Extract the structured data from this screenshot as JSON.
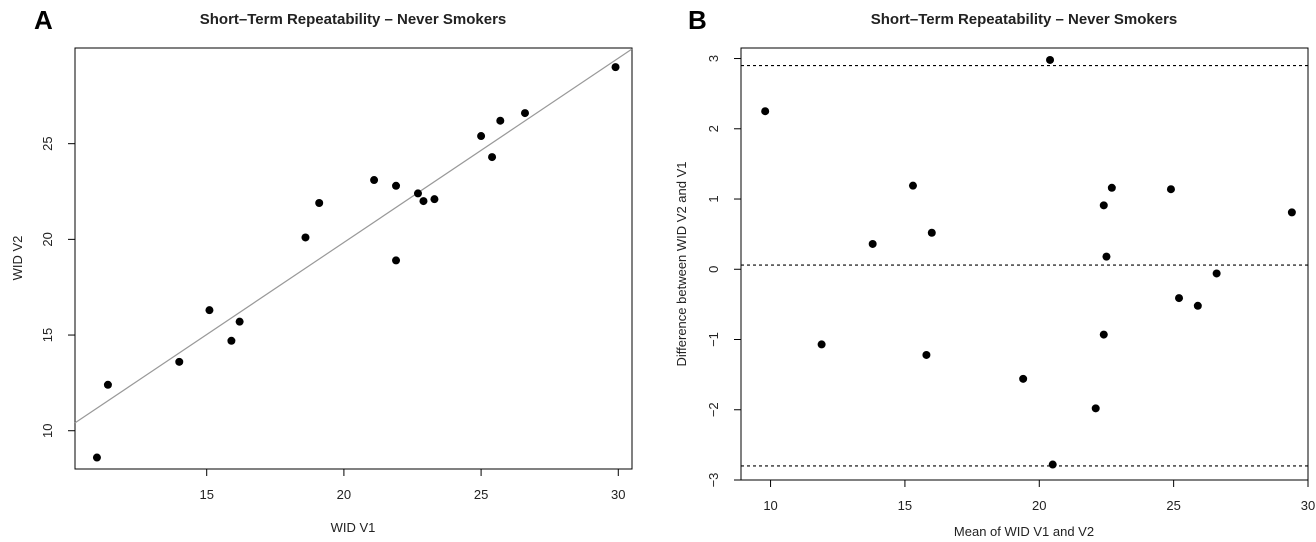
{
  "chart_data": [
    {
      "panel": "A",
      "type": "scatter",
      "title": "Short–Term Repeatability – Never Smokers",
      "xlabel": "WID V1",
      "ylabel": "WID V2",
      "xlim": [
        10.2,
        30.5
      ],
      "ylim": [
        8.0,
        30.0
      ],
      "xticks": [
        15,
        20,
        25,
        30
      ],
      "yticks": [
        10,
        15,
        20,
        25
      ],
      "reference_line": {
        "slope": 0.9625,
        "intercept": 0.59,
        "color": "#999999"
      },
      "points": [
        {
          "x": 11.0,
          "y": 8.6
        },
        {
          "x": 11.4,
          "y": 12.4
        },
        {
          "x": 14.0,
          "y": 13.6
        },
        {
          "x": 15.1,
          "y": 16.3
        },
        {
          "x": 15.9,
          "y": 14.7
        },
        {
          "x": 16.2,
          "y": 15.7
        },
        {
          "x": 18.6,
          "y": 20.1
        },
        {
          "x": 19.1,
          "y": 21.9
        },
        {
          "x": 21.1,
          "y": 23.1
        },
        {
          "x": 21.9,
          "y": 22.8
        },
        {
          "x": 21.9,
          "y": 18.9
        },
        {
          "x": 22.7,
          "y": 22.4
        },
        {
          "x": 22.9,
          "y": 22.0
        },
        {
          "x": 23.3,
          "y": 22.1
        },
        {
          "x": 25.0,
          "y": 25.4
        },
        {
          "x": 25.4,
          "y": 24.3
        },
        {
          "x": 25.7,
          "y": 26.2
        },
        {
          "x": 26.6,
          "y": 26.6
        },
        {
          "x": 29.9,
          "y": 29.0
        }
      ]
    },
    {
      "panel": "B",
      "type": "scatter",
      "title": "Short–Term Repeatability – Never Smokers",
      "xlabel": "Mean of WID V1 and V2",
      "ylabel": "Difference between WID V2 and V1",
      "xlim": [
        8.9,
        30.0
      ],
      "ylim": [
        -3.0,
        3.15
      ],
      "xticks": [
        10,
        15,
        20,
        25,
        30
      ],
      "yticks": [
        -3,
        -2,
        -1,
        0,
        1,
        2,
        3
      ],
      "reference_lines": [
        2.9,
        0.06,
        -2.8
      ],
      "points": [
        {
          "x": 9.8,
          "y": 2.25
        },
        {
          "x": 11.9,
          "y": -1.07
        },
        {
          "x": 13.8,
          "y": 0.36
        },
        {
          "x": 15.3,
          "y": 1.19
        },
        {
          "x": 15.8,
          "y": -1.22
        },
        {
          "x": 16.0,
          "y": 0.52
        },
        {
          "x": 19.4,
          "y": -1.56
        },
        {
          "x": 20.4,
          "y": 2.98
        },
        {
          "x": 20.5,
          "y": -2.78
        },
        {
          "x": 22.1,
          "y": -1.98
        },
        {
          "x": 22.4,
          "y": 0.91
        },
        {
          "x": 22.4,
          "y": -0.93
        },
        {
          "x": 22.5,
          "y": 0.18
        },
        {
          "x": 22.7,
          "y": 1.16
        },
        {
          "x": 24.9,
          "y": 1.14
        },
        {
          "x": 25.2,
          "y": -0.41
        },
        {
          "x": 25.9,
          "y": -0.52
        },
        {
          "x": 26.6,
          "y": -0.06
        },
        {
          "x": 29.4,
          "y": 0.81
        }
      ]
    }
  ]
}
